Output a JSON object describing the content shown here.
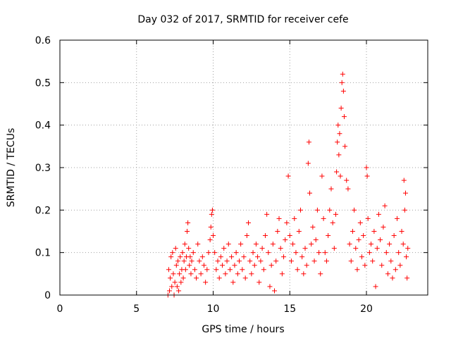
{
  "chart_data": {
    "type": "scatter",
    "title": "Day 032 of 2017, SRMTID for receiver cefe",
    "xlabel": "GPS time / hours",
    "ylabel": "SRMTID / TECUs",
    "xlim": [
      0,
      24
    ],
    "ylim": [
      0,
      0.6
    ],
    "xticks": [
      0,
      5,
      10,
      15,
      20
    ],
    "xtick_labels": [
      "0",
      "5",
      "10",
      "15",
      "20"
    ],
    "yticks": [
      0,
      0.1,
      0.2,
      0.3,
      0.4,
      0.5,
      0.6
    ],
    "ytick_labels": [
      "0",
      "0.1",
      "0.2",
      "0.3",
      "0.4",
      "0.5",
      "0.6"
    ],
    "grid": true,
    "marker": "+",
    "color": "#ff0000",
    "series": [
      {
        "name": "SRMTID",
        "points": [
          [
            7.05,
            0.0
          ],
          [
            7.1,
            0.06
          ],
          [
            7.15,
            0.01
          ],
          [
            7.2,
            0.04
          ],
          [
            7.25,
            0.09
          ],
          [
            7.3,
            0.02
          ],
          [
            7.35,
            0.1
          ],
          [
            7.4,
            0.05
          ],
          [
            7.45,
            0.0
          ],
          [
            7.5,
            0.03
          ],
          [
            7.55,
            0.11
          ],
          [
            7.6,
            0.07
          ],
          [
            7.65,
            0.02
          ],
          [
            7.7,
            0.08
          ],
          [
            7.75,
            0.01
          ],
          [
            7.8,
            0.05
          ],
          [
            7.85,
            0.09
          ],
          [
            7.9,
            0.03
          ],
          [
            7.95,
            0.06
          ],
          [
            8.0,
            0.1
          ],
          [
            8.05,
            0.04
          ],
          [
            8.1,
            0.08
          ],
          [
            8.15,
            0.12
          ],
          [
            8.2,
            0.06
          ],
          [
            8.25,
            0.09
          ],
          [
            8.3,
            0.15
          ],
          [
            8.35,
            0.17
          ],
          [
            8.4,
            0.11
          ],
          [
            8.45,
            0.07
          ],
          [
            8.5,
            0.09
          ],
          [
            8.55,
            0.05
          ],
          [
            8.6,
            0.08
          ],
          [
            8.7,
            0.1
          ],
          [
            8.8,
            0.06
          ],
          [
            8.9,
            0.04
          ],
          [
            9.0,
            0.12
          ],
          [
            9.1,
            0.08
          ],
          [
            9.2,
            0.05
          ],
          [
            9.3,
            0.09
          ],
          [
            9.4,
            0.07
          ],
          [
            9.5,
            0.03
          ],
          [
            9.6,
            0.06
          ],
          [
            9.7,
            0.1
          ],
          [
            9.8,
            0.13
          ],
          [
            9.85,
            0.16
          ],
          [
            9.9,
            0.19
          ],
          [
            9.95,
            0.2
          ],
          [
            10.0,
            0.14
          ],
          [
            10.1,
            0.1
          ],
          [
            10.2,
            0.06
          ],
          [
            10.3,
            0.08
          ],
          [
            10.4,
            0.04
          ],
          [
            10.5,
            0.09
          ],
          [
            10.6,
            0.07
          ],
          [
            10.7,
            0.11
          ],
          [
            10.8,
            0.05
          ],
          [
            10.9,
            0.08
          ],
          [
            11.0,
            0.12
          ],
          [
            11.1,
            0.06
          ],
          [
            11.2,
            0.09
          ],
          [
            11.3,
            0.03
          ],
          [
            11.4,
            0.07
          ],
          [
            11.5,
            0.1
          ],
          [
            11.6,
            0.05
          ],
          [
            11.7,
            0.08
          ],
          [
            11.8,
            0.12
          ],
          [
            11.9,
            0.06
          ],
          [
            12.0,
            0.09
          ],
          [
            12.1,
            0.04
          ],
          [
            12.2,
            0.14
          ],
          [
            12.3,
            0.17
          ],
          [
            12.4,
            0.08
          ],
          [
            12.5,
            0.05
          ],
          [
            12.6,
            0.1
          ],
          [
            12.7,
            0.07
          ],
          [
            12.8,
            0.12
          ],
          [
            12.9,
            0.09
          ],
          [
            13.0,
            0.03
          ],
          [
            13.1,
            0.08
          ],
          [
            13.2,
            0.11
          ],
          [
            13.3,
            0.06
          ],
          [
            13.4,
            0.14
          ],
          [
            13.5,
            0.19
          ],
          [
            13.6,
            0.1
          ],
          [
            13.7,
            0.02
          ],
          [
            13.8,
            0.07
          ],
          [
            13.9,
            0.12
          ],
          [
            14.0,
            0.01
          ],
          [
            14.1,
            0.08
          ],
          [
            14.2,
            0.15
          ],
          [
            14.3,
            0.18
          ],
          [
            14.4,
            0.11
          ],
          [
            14.5,
            0.05
          ],
          [
            14.6,
            0.09
          ],
          [
            14.7,
            0.13
          ],
          [
            14.8,
            0.17
          ],
          [
            14.9,
            0.28
          ],
          [
            15.0,
            0.14
          ],
          [
            15.1,
            0.08
          ],
          [
            15.2,
            0.12
          ],
          [
            15.3,
            0.18
          ],
          [
            15.4,
            0.1
          ],
          [
            15.5,
            0.06
          ],
          [
            15.6,
            0.15
          ],
          [
            15.7,
            0.2
          ],
          [
            15.8,
            0.09
          ],
          [
            15.9,
            0.05
          ],
          [
            16.0,
            0.11
          ],
          [
            16.1,
            0.07
          ],
          [
            16.2,
            0.31
          ],
          [
            16.25,
            0.36
          ],
          [
            16.3,
            0.24
          ],
          [
            16.4,
            0.12
          ],
          [
            16.5,
            0.16
          ],
          [
            16.6,
            0.08
          ],
          [
            16.7,
            0.13
          ],
          [
            16.8,
            0.2
          ],
          [
            16.9,
            0.1
          ],
          [
            17.0,
            0.05
          ],
          [
            17.1,
            0.28
          ],
          [
            17.2,
            0.18
          ],
          [
            17.3,
            0.1
          ],
          [
            17.4,
            0.08
          ],
          [
            17.5,
            0.14
          ],
          [
            17.6,
            0.2
          ],
          [
            17.7,
            0.25
          ],
          [
            17.8,
            0.17
          ],
          [
            17.9,
            0.11
          ],
          [
            18.0,
            0.19
          ],
          [
            18.05,
            0.29
          ],
          [
            18.1,
            0.36
          ],
          [
            18.15,
            0.4
          ],
          [
            18.2,
            0.33
          ],
          [
            18.25,
            0.38
          ],
          [
            18.3,
            0.28
          ],
          [
            18.35,
            0.44
          ],
          [
            18.4,
            0.5
          ],
          [
            18.45,
            0.52
          ],
          [
            18.5,
            0.48
          ],
          [
            18.55,
            0.42
          ],
          [
            18.6,
            0.35
          ],
          [
            18.7,
            0.27
          ],
          [
            18.8,
            0.25
          ],
          [
            18.9,
            0.12
          ],
          [
            19.0,
            0.08
          ],
          [
            19.1,
            0.15
          ],
          [
            19.2,
            0.2
          ],
          [
            19.3,
            0.11
          ],
          [
            19.4,
            0.06
          ],
          [
            19.5,
            0.13
          ],
          [
            19.6,
            0.17
          ],
          [
            19.7,
            0.09
          ],
          [
            19.8,
            0.14
          ],
          [
            19.9,
            0.07
          ],
          [
            20.0,
            0.3
          ],
          [
            20.05,
            0.28
          ],
          [
            20.1,
            0.18
          ],
          [
            20.2,
            0.1
          ],
          [
            20.3,
            0.12
          ],
          [
            20.4,
            0.08
          ],
          [
            20.5,
            0.15
          ],
          [
            20.6,
            0.02
          ],
          [
            20.7,
            0.11
          ],
          [
            20.8,
            0.19
          ],
          [
            20.9,
            0.13
          ],
          [
            21.0,
            0.07
          ],
          [
            21.1,
            0.16
          ],
          [
            21.2,
            0.21
          ],
          [
            21.3,
            0.1
          ],
          [
            21.4,
            0.05
          ],
          [
            21.5,
            0.12
          ],
          [
            21.6,
            0.08
          ],
          [
            21.7,
            0.04
          ],
          [
            21.8,
            0.14
          ],
          [
            21.9,
            0.06
          ],
          [
            22.0,
            0.18
          ],
          [
            22.1,
            0.1
          ],
          [
            22.2,
            0.07
          ],
          [
            22.3,
            0.15
          ],
          [
            22.4,
            0.12
          ],
          [
            22.45,
            0.27
          ],
          [
            22.5,
            0.2
          ],
          [
            22.55,
            0.24
          ],
          [
            22.6,
            0.09
          ],
          [
            22.65,
            0.04
          ],
          [
            22.7,
            0.11
          ]
        ]
      }
    ]
  }
}
